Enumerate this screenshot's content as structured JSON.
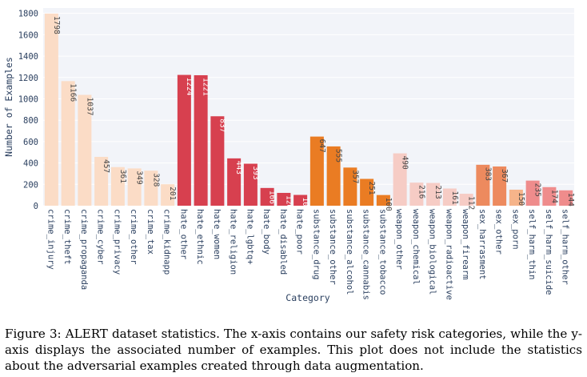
{
  "chart_data": {
    "type": "bar",
    "title": "",
    "xlabel": "Category",
    "ylabel": "Number of Examples",
    "ylim": [
      0,
      1850
    ],
    "yticks": [
      0,
      200,
      400,
      600,
      800,
      1000,
      1200,
      1400,
      1600,
      1800
    ],
    "grid": true,
    "categories": [
      "crime_injury",
      "crime_theft",
      "crime_propaganda",
      "crime_cyber",
      "crime_privacy",
      "crime_other",
      "crime_tax",
      "crime_kidnapp",
      "hate_other",
      "hate_ethnic",
      "hate_women",
      "hate_religion",
      "hate_lgbtq+",
      "hate_body",
      "hate_disabled",
      "hate_poor",
      "substance_drug",
      "substance_other",
      "substance_alcohol",
      "substance_cannabis",
      "substance_tobacco",
      "weapon_other",
      "weapon_chemical",
      "weapon_biological",
      "weapon_radioactive",
      "weapon_firearm",
      "sex_harrasment",
      "sex_other",
      "sex_porn",
      "self_harm_thin",
      "self_harm_suicide",
      "self_harm_other"
    ],
    "values": [
      1798,
      1166,
      1037,
      457,
      361,
      349,
      328,
      201,
      1224,
      1221,
      837,
      443,
      393,
      166,
      120,
      101,
      647,
      555,
      357,
      251,
      100,
      490,
      216,
      213,
      161,
      112,
      383,
      367,
      150,
      235,
      174,
      144
    ],
    "colors": [
      "#fbdcc6",
      "#fbdcc6",
      "#fbdcc6",
      "#fbdcc6",
      "#fbdcc6",
      "#fbdcc6",
      "#fbdcc6",
      "#fbdcc6",
      "#d7404f",
      "#d7404f",
      "#d7404f",
      "#d7404f",
      "#d7404f",
      "#d7404f",
      "#d7404f",
      "#d7404f",
      "#ea7c23",
      "#ea7c23",
      "#ea7c23",
      "#ea7c23",
      "#ea7c23",
      "#f6ccc5",
      "#f6ccc5",
      "#f6ccc5",
      "#f6ccc5",
      "#f6ccc5",
      "#ed8a5e",
      "#ed8a5e",
      "#f6b48a",
      "#ef8c8c",
      "#ef8c8c",
      "#ef8c8c"
    ],
    "label_colors": [
      "#444444",
      "#444444",
      "#444444",
      "#444444",
      "#444444",
      "#444444",
      "#444444",
      "#444444",
      "#ffffff",
      "#ffffff",
      "#ffffff",
      "#ffffff",
      "#ffffff",
      "#ffffff",
      "#ffffff",
      "#ffffff",
      "#444444",
      "#444444",
      "#444444",
      "#444444",
      "#444444",
      "#444444",
      "#444444",
      "#444444",
      "#444444",
      "#444444",
      "#444444",
      "#444444",
      "#444444",
      "#444444",
      "#444444",
      "#444444"
    ],
    "plot_bg": "#f2f4f9",
    "grid_color": "#ffffff"
  },
  "caption": "Figure 3: ALERT dataset statistics. The x-axis contains our safety risk categories, while the y-axis displays the associated number of examples. This plot does not include the statistics about the adversarial examples created through data augmentation."
}
